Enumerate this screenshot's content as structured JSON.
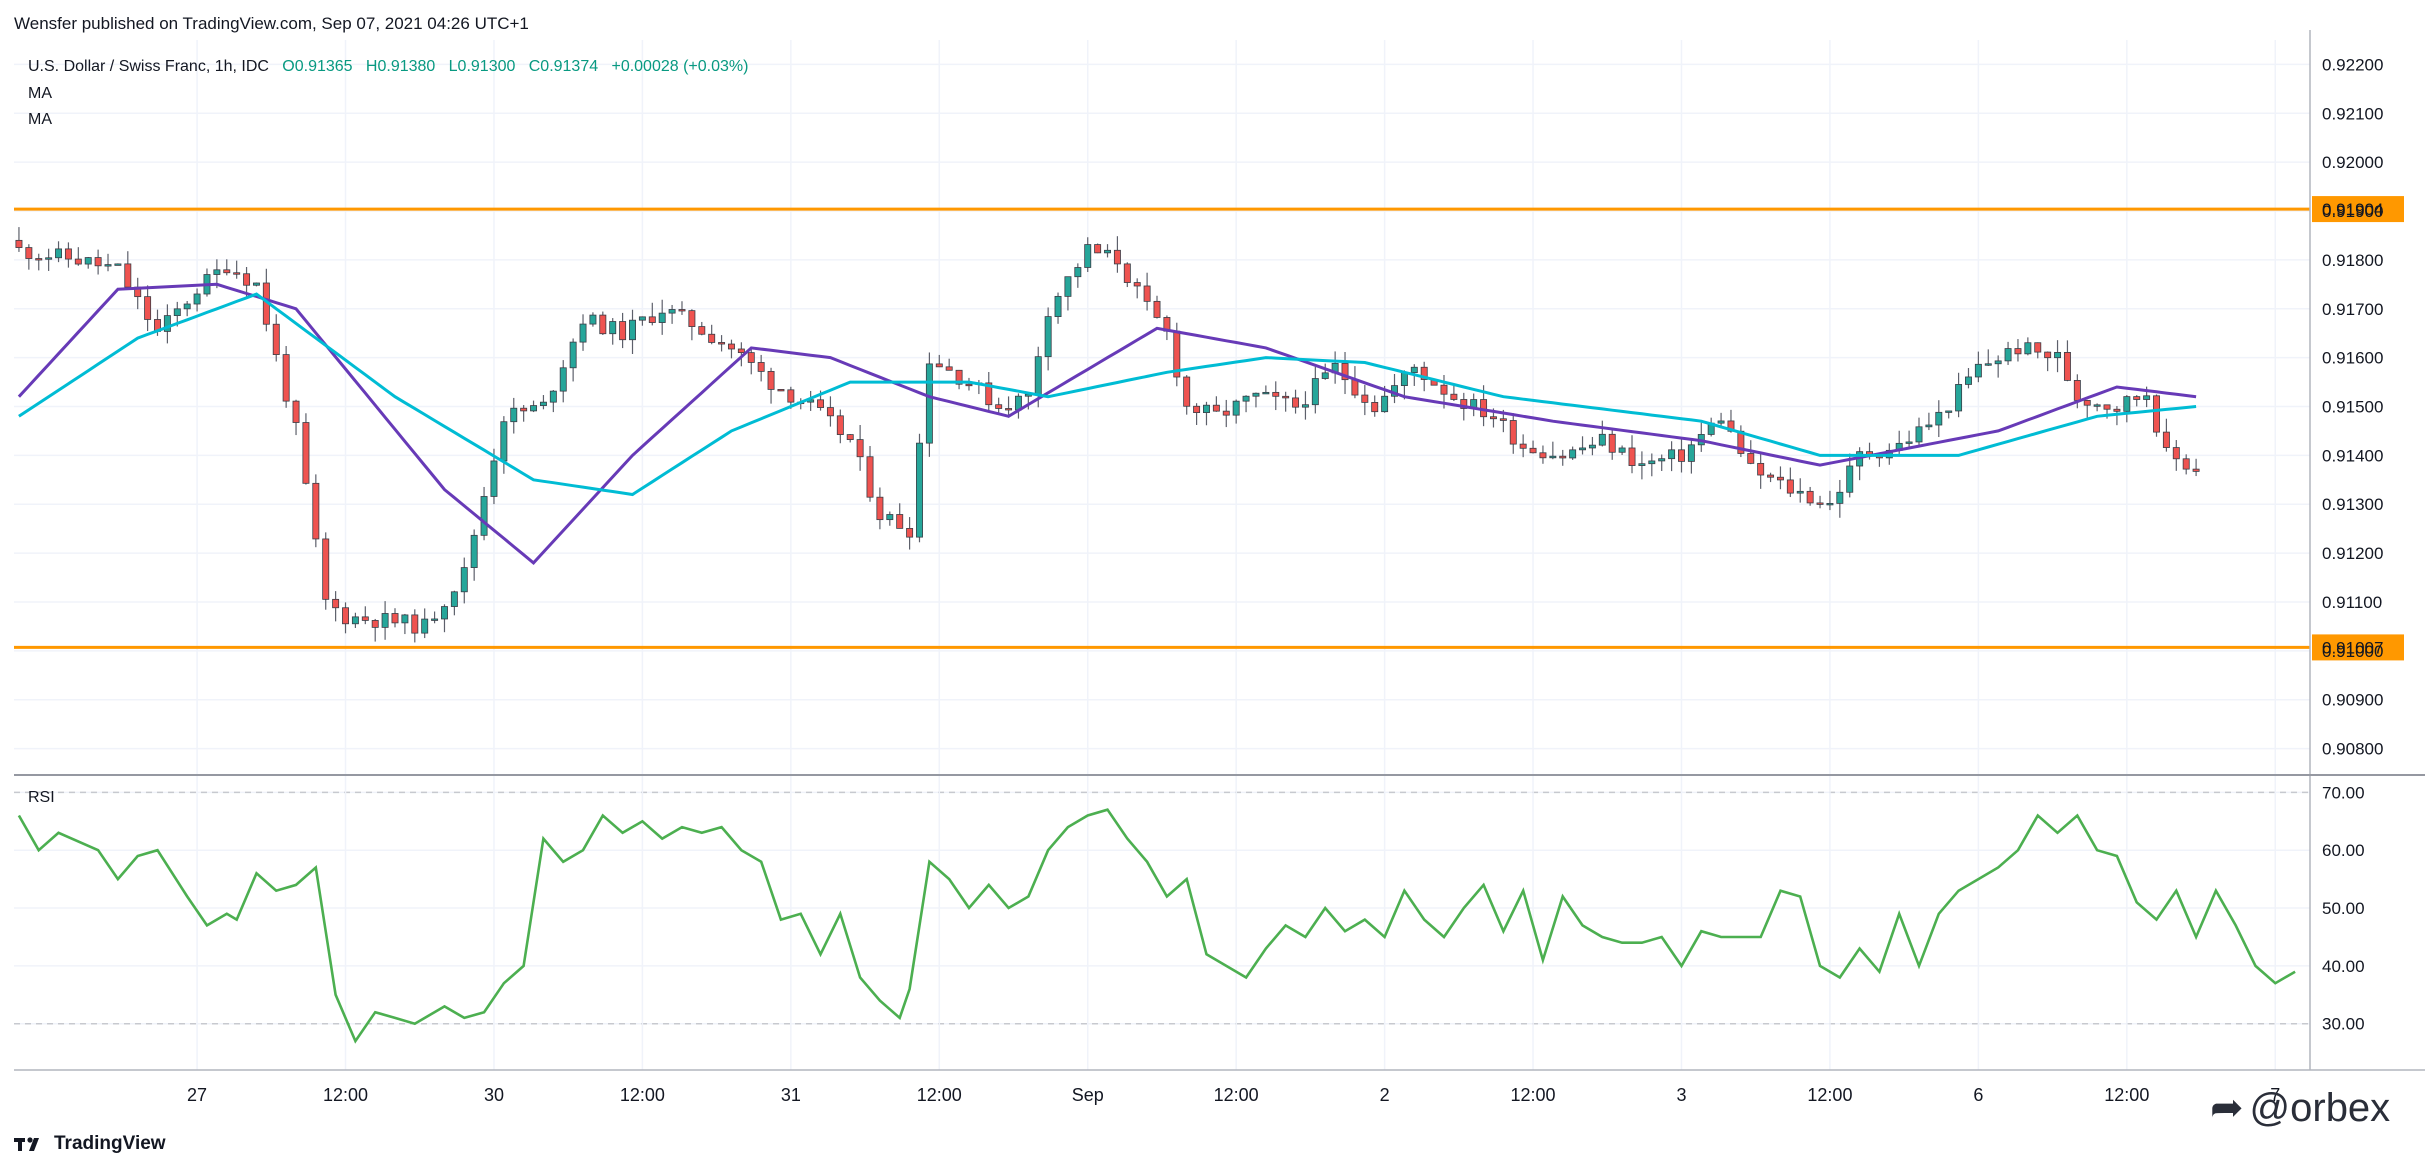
{
  "header": {
    "published": "Wensfer published on TradingView.com, Sep 07, 2021 04:26 UTC+1",
    "symbol": "U.S. Dollar / Swiss Franc, 1h, IDC",
    "open": "O0.91365",
    "high": "H0.91380",
    "low": "L0.91300",
    "close": "C0.91374",
    "change": "+0.00028 (+0.03%)",
    "ma1": "MA",
    "ma2": "MA"
  },
  "rsi_label": "RSI",
  "footer": {
    "brand": "TradingView",
    "logo_icon": "tradingview-logo-icon"
  },
  "watermark": {
    "text": "@orbex",
    "icon": "telegram-icon"
  },
  "colors": {
    "up": "#26a69a",
    "down": "#ef5350",
    "ma_fast": "#673ab7",
    "ma_slow": "#00bcd4",
    "level": "#ff9800",
    "rsi": "#4caf50",
    "grid": "#f0f3fa",
    "axis": "#b2b5be"
  },
  "chart_data": [
    {
      "type": "candlestick",
      "title": "U.S. Dollar / Swiss Franc, 1h, IDC",
      "y_ticks": [
        "0.92200",
        "0.92100",
        "0.92000",
        "0.91900",
        "0.91800",
        "0.91700",
        "0.91600",
        "0.91500",
        "0.91400",
        "0.91300",
        "0.91200",
        "0.91100",
        "0.91000",
        "0.90900",
        "0.90800"
      ],
      "ylim": [
        0.9075,
        0.9225
      ],
      "x_ticks": [
        "27",
        "12:00",
        "30",
        "12:00",
        "31",
        "12:00",
        "Sep",
        "12:00",
        "2",
        "12:00",
        "3",
        "12:00",
        "6",
        "12:00",
        "7"
      ],
      "horizontal_levels": [
        {
          "value": 0.91904,
          "label": "0.91904"
        },
        {
          "value": 0.91007,
          "label": "0.91007"
        }
      ],
      "close_anchors": [
        [
          0,
          0.9182
        ],
        [
          6,
          0.918
        ],
        [
          10,
          0.9178
        ],
        [
          14,
          0.9165
        ],
        [
          18,
          0.9174
        ],
        [
          21,
          0.9179
        ],
        [
          24,
          0.9175
        ],
        [
          28,
          0.9145
        ],
        [
          31,
          0.911
        ],
        [
          33,
          0.9107
        ],
        [
          38,
          0.9106
        ],
        [
          41,
          0.9105
        ],
        [
          45,
          0.9116
        ],
        [
          49,
          0.9148
        ],
        [
          53,
          0.915
        ],
        [
          57,
          0.9168
        ],
        [
          61,
          0.9165
        ],
        [
          65,
          0.917
        ],
        [
          68,
          0.9167
        ],
        [
          72,
          0.9162
        ],
        [
          76,
          0.9155
        ],
        [
          80,
          0.915
        ],
        [
          84,
          0.9143
        ],
        [
          87,
          0.9128
        ],
        [
          90,
          0.9125
        ],
        [
          92,
          0.916
        ],
        [
          96,
          0.9155
        ],
        [
          99,
          0.915
        ],
        [
          102,
          0.9152
        ],
        [
          104,
          0.917
        ],
        [
          108,
          0.9182
        ],
        [
          111,
          0.918
        ],
        [
          114,
          0.917
        ],
        [
          116,
          0.9165
        ],
        [
          118,
          0.915
        ],
        [
          121,
          0.9148
        ],
        [
          125,
          0.9152
        ],
        [
          129,
          0.915
        ],
        [
          133,
          0.9158
        ],
        [
          137,
          0.915
        ],
        [
          141,
          0.9158
        ],
        [
          145,
          0.9152
        ],
        [
          149,
          0.9148
        ],
        [
          152,
          0.9142
        ],
        [
          156,
          0.914
        ],
        [
          160,
          0.9143
        ],
        [
          164,
          0.9138
        ],
        [
          168,
          0.914
        ],
        [
          172,
          0.9148
        ],
        [
          175,
          0.9137
        ],
        [
          179,
          0.9133
        ],
        [
          183,
          0.913
        ],
        [
          186,
          0.914
        ],
        [
          190,
          0.9142
        ],
        [
          194,
          0.9148
        ],
        [
          198,
          0.9158
        ],
        [
          202,
          0.9162
        ],
        [
          206,
          0.916
        ],
        [
          208,
          0.9152
        ],
        [
          212,
          0.915
        ],
        [
          215,
          0.9153
        ],
        [
          217,
          0.914
        ],
        [
          220,
          0.91374
        ]
      ],
      "series": [
        {
          "name": "MA",
          "values": [
            [
              0,
              0.9152
            ],
            [
              10,
              0.9174
            ],
            [
              20,
              0.9175
            ],
            [
              28,
              0.917
            ],
            [
              43,
              0.9133
            ],
            [
              52,
              0.9118
            ],
            [
              62,
              0.914
            ],
            [
              74,
              0.9162
            ],
            [
              82,
              0.916
            ],
            [
              92,
              0.9152
            ],
            [
              100,
              0.9148
            ],
            [
              110,
              0.916
            ],
            [
              115,
              0.9166
            ],
            [
              126,
              0.9162
            ],
            [
              140,
              0.9152
            ],
            [
              155,
              0.9147
            ],
            [
              170,
              0.9143
            ],
            [
              182,
              0.9138
            ],
            [
              200,
              0.9145
            ],
            [
              212,
              0.9154
            ],
            [
              220,
              0.9152
            ]
          ]
        },
        {
          "name": "MA",
          "values": [
            [
              0,
              0.9148
            ],
            [
              12,
              0.9164
            ],
            [
              24,
              0.9173
            ],
            [
              38,
              0.9152
            ],
            [
              52,
              0.9135
            ],
            [
              62,
              0.9132
            ],
            [
              72,
              0.9145
            ],
            [
              84,
              0.9155
            ],
            [
              96,
              0.9155
            ],
            [
              104,
              0.9152
            ],
            [
              116,
              0.9157
            ],
            [
              126,
              0.916
            ],
            [
              136,
              0.9159
            ],
            [
              150,
              0.9152
            ],
            [
              170,
              0.9147
            ],
            [
              182,
              0.914
            ],
            [
              196,
              0.914
            ],
            [
              210,
              0.9148
            ],
            [
              220,
              0.915
            ]
          ]
        }
      ]
    },
    {
      "type": "line",
      "title": "RSI",
      "y_ticks": [
        "70.00",
        "60.00",
        "50.00",
        "40.00",
        "30.00"
      ],
      "ylim": [
        22,
        73
      ],
      "bands": [
        70,
        30
      ],
      "series": [
        {
          "name": "RSI",
          "values": [
            [
              0,
              66
            ],
            [
              2,
              60
            ],
            [
              4,
              63
            ],
            [
              8,
              60
            ],
            [
              10,
              55
            ],
            [
              12,
              59
            ],
            [
              14,
              60
            ],
            [
              17,
              52
            ],
            [
              19,
              47
            ],
            [
              21,
              49
            ],
            [
              22,
              48
            ],
            [
              24,
              56
            ],
            [
              26,
              53
            ],
            [
              28,
              54
            ],
            [
              30,
              57
            ],
            [
              32,
              35
            ],
            [
              34,
              27
            ],
            [
              36,
              32
            ],
            [
              38,
              31
            ],
            [
              40,
              30
            ],
            [
              43,
              33
            ],
            [
              45,
              31
            ],
            [
              47,
              32
            ],
            [
              49,
              37
            ],
            [
              51,
              40
            ],
            [
              53,
              62
            ],
            [
              55,
              58
            ],
            [
              57,
              60
            ],
            [
              59,
              66
            ],
            [
              61,
              63
            ],
            [
              63,
              65
            ],
            [
              65,
              62
            ],
            [
              67,
              64
            ],
            [
              69,
              63
            ],
            [
              71,
              64
            ],
            [
              73,
              60
            ],
            [
              75,
              58
            ],
            [
              77,
              48
            ],
            [
              79,
              49
            ],
            [
              81,
              42
            ],
            [
              83,
              49
            ],
            [
              85,
              38
            ],
            [
              87,
              34
            ],
            [
              89,
              31
            ],
            [
              90,
              36
            ],
            [
              92,
              58
            ],
            [
              94,
              55
            ],
            [
              96,
              50
            ],
            [
              98,
              54
            ],
            [
              100,
              50
            ],
            [
              102,
              52
            ],
            [
              104,
              60
            ],
            [
              106,
              64
            ],
            [
              108,
              66
            ],
            [
              110,
              67
            ],
            [
              112,
              62
            ],
            [
              114,
              58
            ],
            [
              116,
              52
            ],
            [
              118,
              55
            ],
            [
              120,
              42
            ],
            [
              122,
              40
            ],
            [
              124,
              38
            ],
            [
              126,
              43
            ],
            [
              128,
              47
            ],
            [
              130,
              45
            ],
            [
              132,
              50
            ],
            [
              134,
              46
            ],
            [
              136,
              48
            ],
            [
              138,
              45
            ],
            [
              140,
              53
            ],
            [
              142,
              48
            ],
            [
              144,
              45
            ],
            [
              146,
              50
            ],
            [
              148,
              54
            ],
            [
              150,
              46
            ],
            [
              152,
              53
            ],
            [
              154,
              41
            ],
            [
              156,
              52
            ],
            [
              158,
              47
            ],
            [
              160,
              45
            ],
            [
              162,
              44
            ],
            [
              164,
              44
            ],
            [
              166,
              45
            ],
            [
              168,
              40
            ],
            [
              170,
              46
            ],
            [
              172,
              45
            ],
            [
              174,
              45
            ],
            [
              176,
              45
            ],
            [
              178,
              53
            ],
            [
              180,
              52
            ],
            [
              182,
              40
            ],
            [
              184,
              38
            ],
            [
              186,
              43
            ],
            [
              188,
              39
            ],
            [
              190,
              49
            ],
            [
              192,
              40
            ],
            [
              194,
              49
            ],
            [
              196,
              53
            ],
            [
              198,
              55
            ],
            [
              200,
              57
            ],
            [
              202,
              60
            ],
            [
              204,
              66
            ],
            [
              206,
              63
            ],
            [
              208,
              66
            ],
            [
              210,
              60
            ],
            [
              212,
              59
            ],
            [
              214,
              51
            ],
            [
              216,
              48
            ],
            [
              218,
              53
            ],
            [
              220,
              45
            ],
            [
              222,
              53
            ],
            [
              224,
              47
            ],
            [
              226,
              40
            ],
            [
              228,
              37
            ],
            [
              230,
              39
            ]
          ]
        }
      ]
    }
  ]
}
